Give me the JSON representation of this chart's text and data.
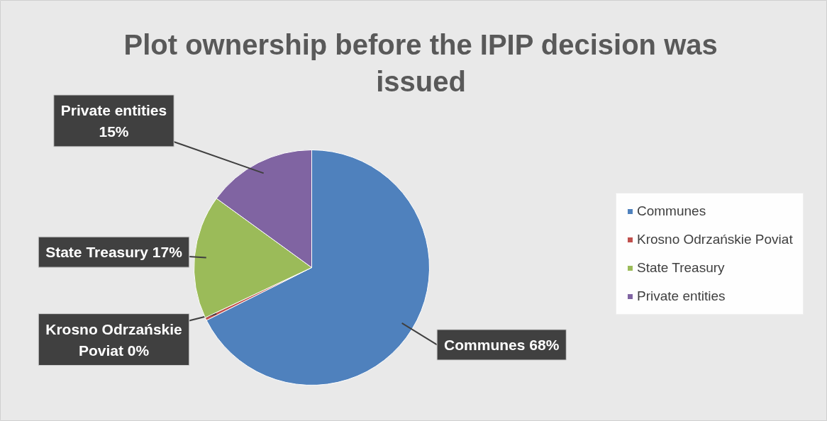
{
  "chart_data": {
    "type": "pie",
    "title": "Plot ownership before the IPIP decision was issued",
    "categories": [
      "Communes",
      "Krosno Odrzańskie Poviat",
      "State Treasury",
      "Private entities"
    ],
    "values": [
      67.6,
      0.4,
      17,
      15
    ],
    "value_labels": [
      "68%",
      "0%",
      "17%",
      "15%"
    ],
    "colors": [
      "#4f81bd",
      "#c0504d",
      "#9bbb59",
      "#8064a2"
    ],
    "legend": "right"
  }
}
